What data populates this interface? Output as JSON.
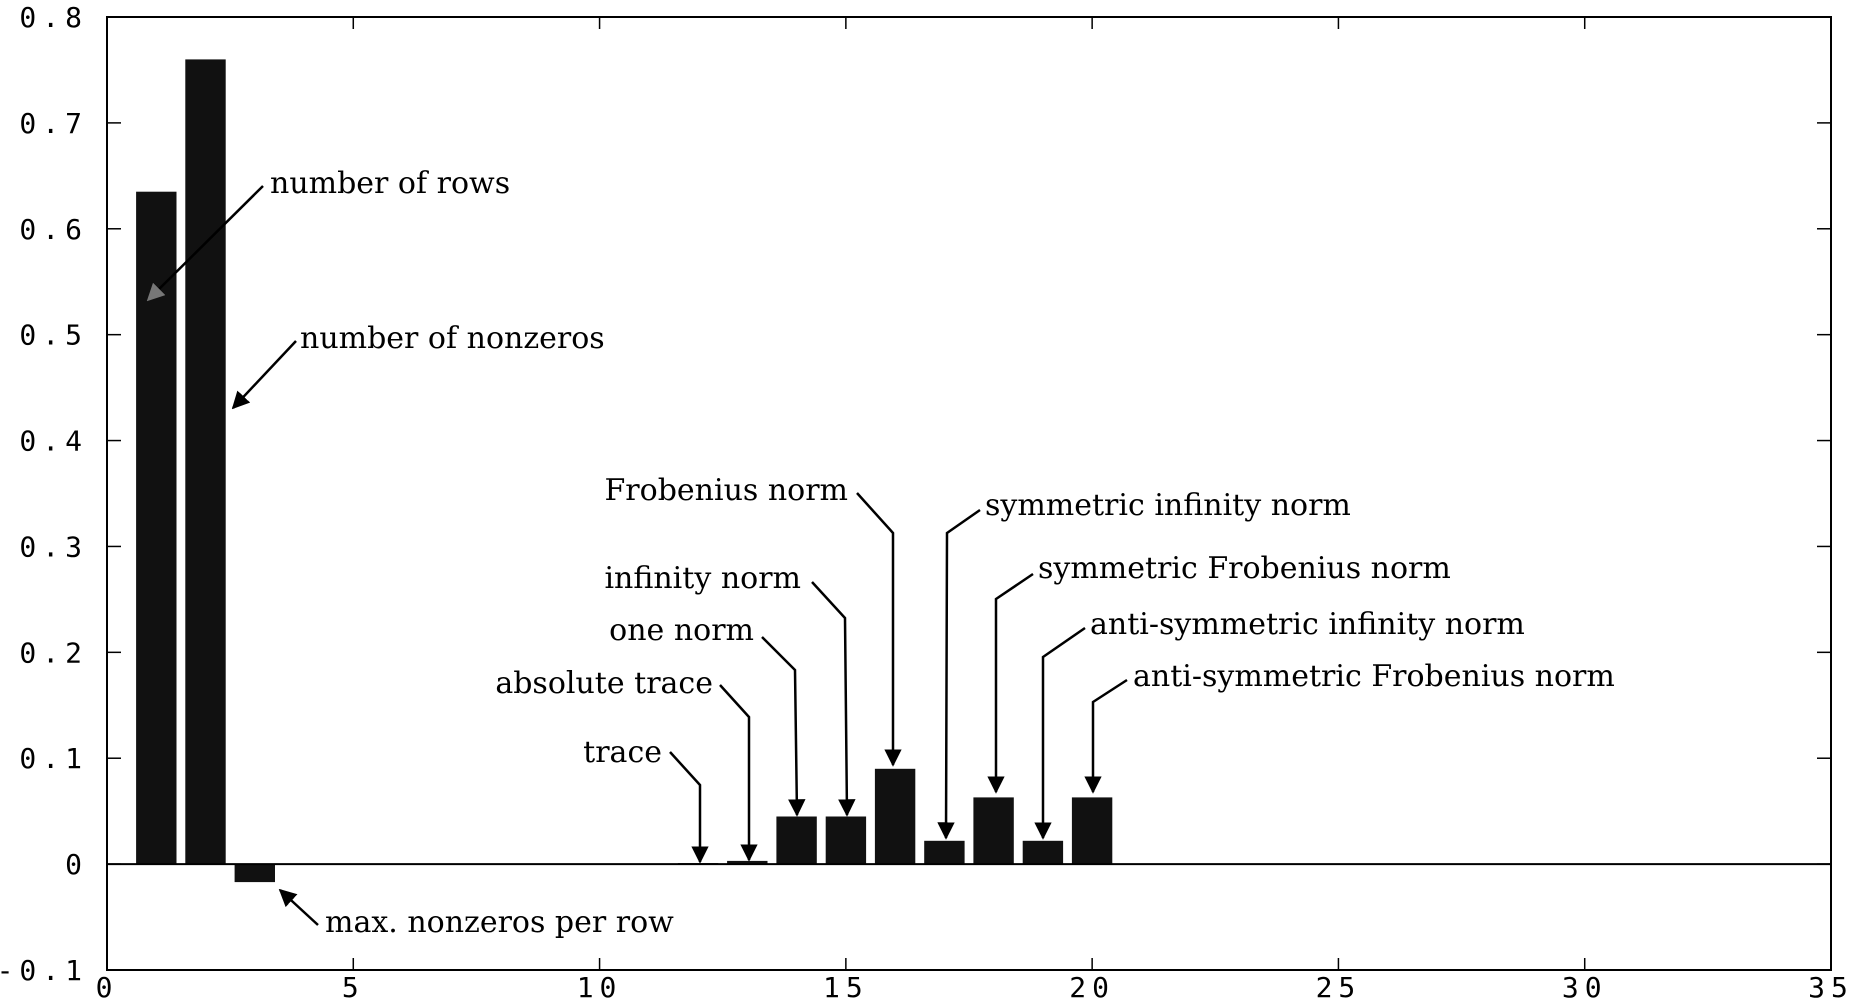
{
  "chart_data": {
    "type": "bar",
    "title": "",
    "xlabel": "",
    "ylabel": "",
    "xlim": [
      0,
      35
    ],
    "ylim": [
      -0.1,
      0.8
    ],
    "xticks": [
      0,
      5,
      10,
      15,
      20,
      25,
      30,
      35
    ],
    "xtick_labels": [
      "0",
      "5",
      "10",
      "15",
      "20",
      "25",
      "30",
      "35"
    ],
    "yticks": [
      -0.1,
      0,
      0.1,
      0.2,
      0.3,
      0.4,
      0.5,
      0.6,
      0.7,
      0.8
    ],
    "ytick_labels": [
      "-0.1",
      "0",
      "0.1",
      "0.2",
      "0.3",
      "0.4",
      "0.5",
      "0.6",
      "0.7",
      "0.8"
    ],
    "grid": false,
    "bar_color": "#111111",
    "x": [
      1,
      2,
      3,
      4,
      5,
      6,
      7,
      8,
      9,
      10,
      11,
      12,
      13,
      14,
      15,
      16,
      17,
      18,
      19,
      20
    ],
    "values": [
      0.635,
      0.76,
      -0.017,
      0,
      0,
      0,
      0,
      0,
      0,
      0,
      0,
      0.001,
      0.003,
      0.045,
      0.045,
      0.09,
      0.022,
      0.063,
      0.022,
      0.063
    ],
    "annotations": [
      {
        "text": "number of rows",
        "bar": 1,
        "color": "#777777"
      },
      {
        "text": "number of nonzeros",
        "bar": 2,
        "color": "#000000"
      },
      {
        "text": "max. nonzeros per row",
        "bar": 3,
        "color": "#000000"
      },
      {
        "text": "trace",
        "bar": 12,
        "color": "#000000"
      },
      {
        "text": "absolute trace",
        "bar": 13,
        "color": "#000000"
      },
      {
        "text": "one norm",
        "bar": 14,
        "color": "#000000"
      },
      {
        "text": "infinity norm",
        "bar": 15,
        "color": "#000000"
      },
      {
        "text": "Frobenius norm",
        "bar": 16,
        "color": "#000000"
      },
      {
        "text": "symmetric infinity norm",
        "bar": 17,
        "color": "#000000"
      },
      {
        "text": "symmetric Frobenius norm",
        "bar": 18,
        "color": "#000000"
      },
      {
        "text": "anti-symmetric infinity norm",
        "bar": 19,
        "color": "#000000"
      },
      {
        "text": "anti-symmetric Frobenius norm",
        "bar": 20,
        "color": "#000000"
      }
    ]
  }
}
